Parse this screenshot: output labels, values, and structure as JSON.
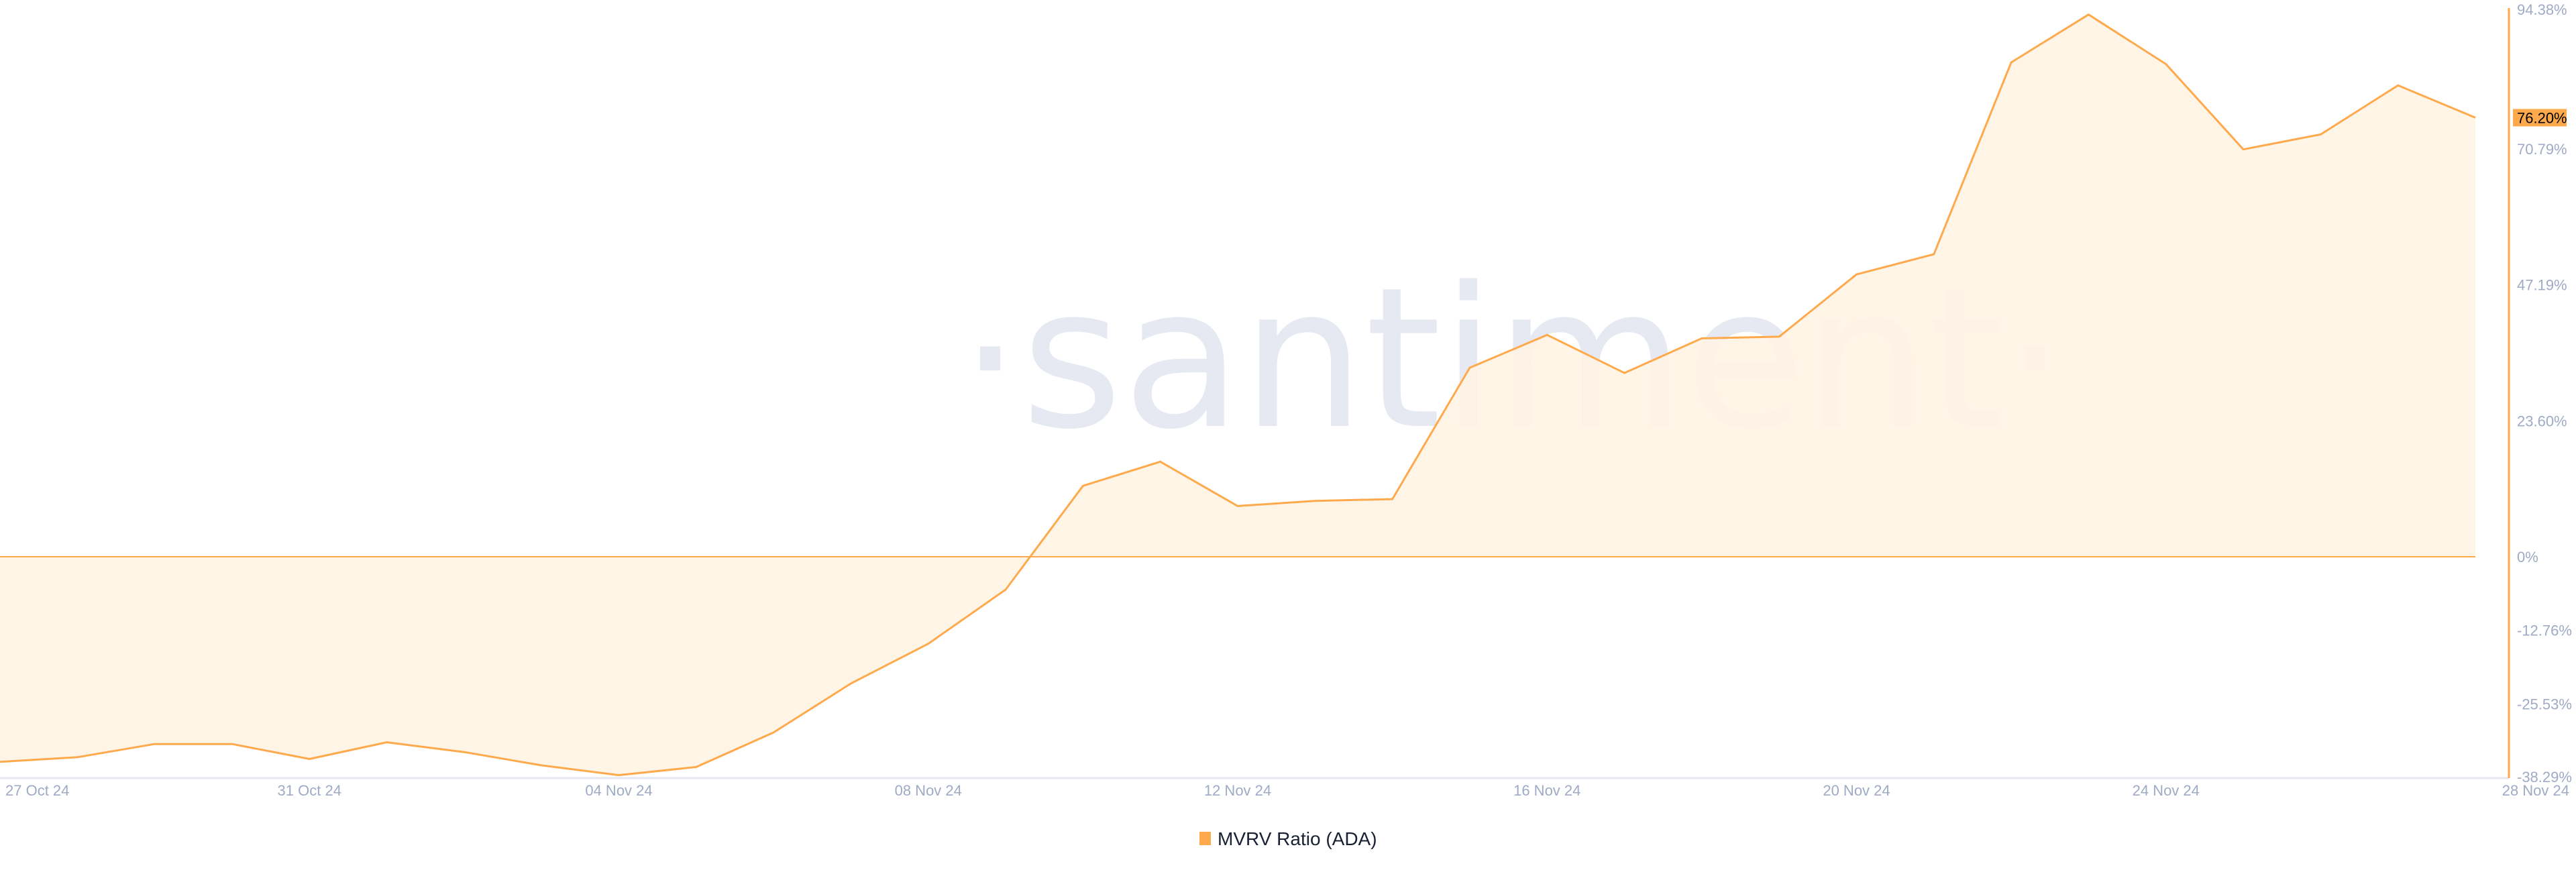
{
  "watermark": "·santiment·",
  "chart_data": {
    "type": "area",
    "title": "",
    "xlabel": "",
    "ylabel": "",
    "start_date": "27 Oct 24",
    "x": [
      "27 Oct",
      "28 Oct",
      "29 Oct",
      "30 Oct",
      "31 Oct",
      "01 Nov",
      "02 Nov",
      "03 Nov",
      "04 Nov",
      "05 Nov",
      "06 Nov",
      "07 Nov",
      "08 Nov",
      "09 Nov",
      "10 Nov",
      "11 Nov",
      "12 Nov",
      "13 Nov",
      "14 Nov",
      "15 Nov",
      "16 Nov",
      "17 Nov",
      "18 Nov",
      "19 Nov",
      "20 Nov",
      "21 Nov",
      "22 Nov",
      "23 Nov",
      "24 Nov",
      "25 Nov",
      "26 Nov",
      "27 Nov",
      "28 Nov"
    ],
    "series": [
      {
        "name": "MVRV Ratio (ADA)",
        "color": "#ffa94d",
        "values": [
          -35.6,
          -34.8,
          -32.5,
          -32.5,
          -35.1,
          -32.2,
          -33.9,
          -36.2,
          -37.9,
          -36.5,
          -30.5,
          -22.0,
          -15.1,
          -5.7,
          12.3,
          16.5,
          8.8,
          9.7,
          10.0,
          32.8,
          38.5,
          31.9,
          37.9,
          38.2,
          49.0,
          52.5,
          85.8,
          94.1,
          85.5,
          70.7,
          73.3,
          81.8,
          76.2
        ]
      }
    ],
    "x_tick_labels": [
      "27 Oct 24",
      "31 Oct 24",
      "04 Nov 24",
      "08 Nov 24",
      "12 Nov 24",
      "16 Nov 24",
      "20 Nov 24",
      "24 Nov 24",
      "28 Nov 24"
    ],
    "y_tick_labels": [
      "94.38%",
      "70.79%",
      "47.19%",
      "23.60%",
      "0%",
      "-12.76%",
      "-25.53%",
      "-38.29%"
    ],
    "y_tick_values": [
      94.38,
      70.79,
      47.19,
      23.6,
      0,
      -12.76,
      -25.53,
      -38.29
    ],
    "ylim": [
      -38.29,
      94.38
    ],
    "last_value_label": "76.20%",
    "last_value": 76.2,
    "legend_position": "bottom-center",
    "grid": false,
    "colors": {
      "line": "#ffa94d",
      "fill": "#fff3e3",
      "axis_text": "#9faac4",
      "badge": "#ffa94d"
    }
  }
}
